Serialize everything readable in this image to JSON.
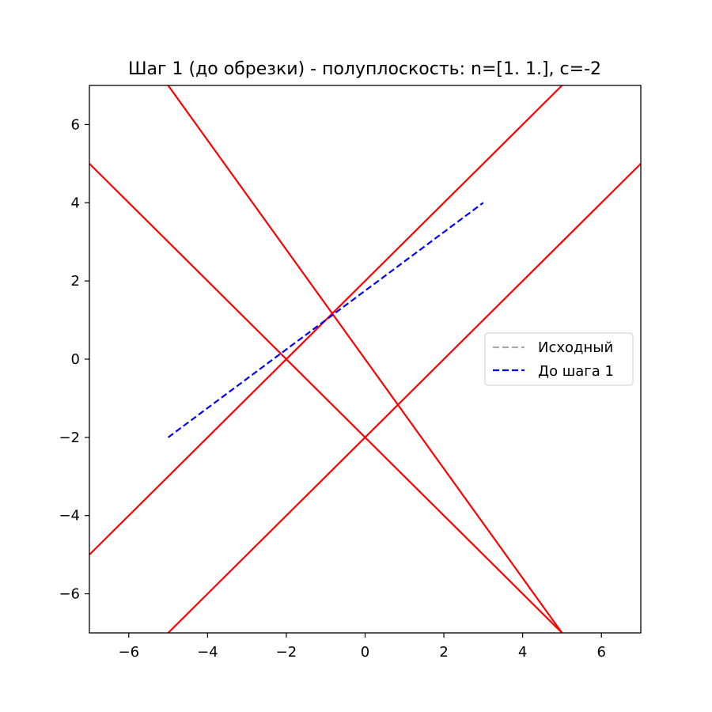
{
  "chart_data": {
    "type": "line",
    "title": "Шаг 1 (до обрезки) - полуплоскость: n=[1. 1.], c=-2",
    "xlabel": "",
    "ylabel": "",
    "xlim": [
      -7,
      7
    ],
    "ylim": [
      -7,
      7
    ],
    "x_ticks": [
      -6,
      -4,
      -2,
      0,
      2,
      4,
      6
    ],
    "y_ticks": [
      -6,
      -4,
      -2,
      0,
      2,
      4,
      6
    ],
    "tick_labels_x": [
      "−6",
      "−4",
      "−2",
      "0",
      "2",
      "4",
      "6"
    ],
    "tick_labels_y": [
      "−6",
      "−4",
      "−2",
      "0",
      "2",
      "4",
      "6"
    ],
    "grid": false,
    "legend_position": "center-right",
    "boundary_lines": [
      {
        "x": [
          -5,
          5
        ],
        "y": [
          7,
          -7
        ],
        "color": "#ff0000"
      },
      {
        "x": [
          -7,
          5
        ],
        "y": [
          5,
          -7
        ],
        "color": "#ff0000"
      },
      {
        "x": [
          -7,
          5
        ],
        "y": [
          -5,
          7
        ],
        "color": "#ff0000"
      },
      {
        "x": [
          -5,
          7
        ],
        "y": [
          -7,
          5
        ],
        "color": "#ff0000"
      }
    ],
    "series": [
      {
        "name": "Исходный",
        "x": [],
        "y": [],
        "color": "#aaaaaa",
        "style": "dashed"
      },
      {
        "name": "До шага 1",
        "x": [
          -5,
          3
        ],
        "y": [
          -2,
          4
        ],
        "color": "#0000ff",
        "style": "dashed"
      }
    ]
  }
}
